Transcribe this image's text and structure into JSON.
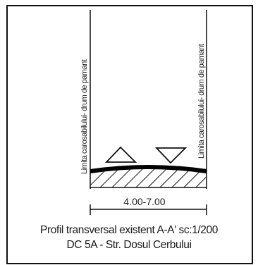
{
  "drawing": {
    "left_boundary_label": "Limita carosabilului- drum de pamant",
    "right_boundary_label": "Limita carosabilului- drum de pamant",
    "width_dimension": "4.00-7.00",
    "caption_line1": "Profil transversal existent A-A' sc:1/200",
    "caption_line2": "DC 5A - Str. Dosul Cerbului",
    "symbols": {
      "left": "triangle-up-icon",
      "right": "triangle-down-icon"
    }
  }
}
